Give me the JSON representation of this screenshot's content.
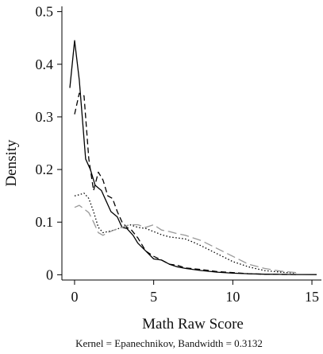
{
  "chart_data": {
    "type": "line",
    "title": "",
    "xlabel": "Math Raw Score",
    "ylabel": "Density",
    "note": "Kernel = Epanechnikov, Bandwidth = 0.3132",
    "xlim": [
      -0.8,
      15.6
    ],
    "ylim": [
      -0.01,
      0.51
    ],
    "xticks": [
      0,
      5,
      10,
      15
    ],
    "yticks": [
      0,
      0.1,
      0.2,
      0.3,
      0.4,
      0.5
    ],
    "xtick_labels": [
      "0",
      "5",
      "10",
      "15"
    ],
    "ytick_labels": [
      "0",
      "0.1",
      "0.2",
      "0.3",
      "0.4",
      "0.5"
    ],
    "grid": false,
    "legend": "none",
    "series": [
      {
        "color": "#000000",
        "dash": "solid",
        "x": [
          -0.3,
          0,
          0.3,
          0.7,
          1,
          1.3,
          1.7,
          2,
          2.3,
          2.7,
          3,
          3.3,
          3.7,
          4,
          4.5,
          5,
          5.5,
          6,
          6.5,
          7,
          8,
          9,
          10,
          11,
          12,
          13,
          14,
          15.3
        ],
        "y": [
          0.355,
          0.445,
          0.37,
          0.22,
          0.2,
          0.17,
          0.16,
          0.14,
          0.12,
          0.11,
          0.09,
          0.088,
          0.075,
          0.06,
          0.045,
          0.03,
          0.028,
          0.02,
          0.015,
          0.012,
          0.008,
          0.005,
          0.003,
          0.002,
          0.001,
          0.0008,
          0.0005,
          0.0003
        ]
      },
      {
        "color": "#000000",
        "dash": "dashed",
        "x": [
          0,
          0.3,
          0.6,
          0.9,
          1.2,
          1.5,
          1.8,
          2.1,
          2.4,
          2.7,
          3,
          3.3,
          3.6,
          4,
          4.5,
          5,
          5.5,
          6,
          6.5,
          7,
          8,
          9,
          10,
          11,
          12,
          13,
          14
        ],
        "y": [
          0.305,
          0.345,
          0.34,
          0.22,
          0.16,
          0.195,
          0.18,
          0.15,
          0.145,
          0.12,
          0.1,
          0.09,
          0.085,
          0.07,
          0.045,
          0.035,
          0.028,
          0.02,
          0.018,
          0.013,
          0.01,
          0.006,
          0.004,
          0.002,
          0.001,
          0.0008,
          0.0005
        ]
      },
      {
        "color": "#000000",
        "dash": "dotted",
        "x": [
          0,
          0.3,
          0.6,
          0.9,
          1.2,
          1.5,
          1.8,
          2.1,
          2.5,
          3,
          3.5,
          4,
          4.5,
          5,
          5.5,
          6,
          6.5,
          7,
          7.5,
          8,
          9,
          10,
          11,
          12,
          13,
          14
        ],
        "y": [
          0.15,
          0.152,
          0.155,
          0.145,
          0.12,
          0.09,
          0.08,
          0.082,
          0.085,
          0.09,
          0.095,
          0.09,
          0.088,
          0.082,
          0.076,
          0.072,
          0.07,
          0.068,
          0.062,
          0.055,
          0.04,
          0.025,
          0.015,
          0.008,
          0.005,
          0.003
        ]
      },
      {
        "color": "#999999",
        "dash": "longdash",
        "x": [
          0,
          0.3,
          0.6,
          0.9,
          1.2,
          1.5,
          1.8,
          2.1,
          2.5,
          3,
          3.5,
          4,
          4.5,
          5,
          5.5,
          6,
          6.5,
          7,
          7.5,
          8,
          9,
          10,
          11,
          12,
          13,
          14
        ],
        "y": [
          0.128,
          0.132,
          0.125,
          0.118,
          0.1,
          0.08,
          0.075,
          0.08,
          0.085,
          0.09,
          0.095,
          0.095,
          0.09,
          0.095,
          0.085,
          0.082,
          0.078,
          0.075,
          0.07,
          0.065,
          0.05,
          0.035,
          0.02,
          0.012,
          0.007,
          0.004
        ]
      }
    ]
  }
}
